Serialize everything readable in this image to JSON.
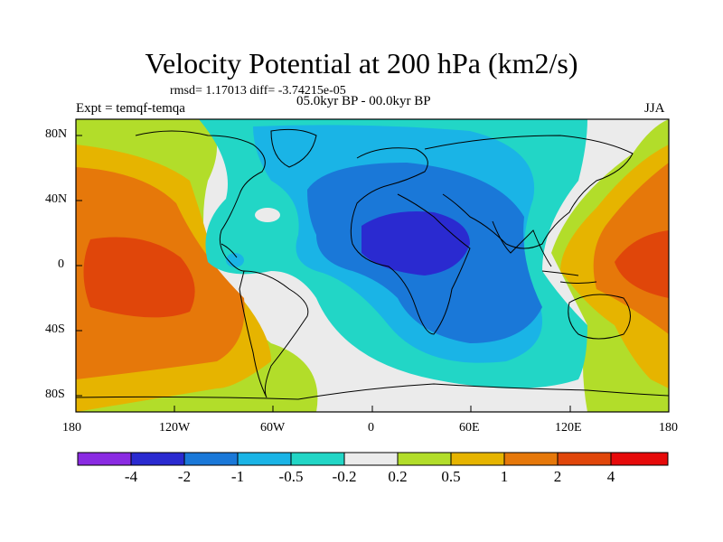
{
  "header": {
    "title": "Velocity Potential at 200 hPa (km2/s)",
    "stats": "rmsd= 1.17013 diff= -3.74215e-05",
    "period": "05.0kyr BP - 00.0kyr BP",
    "experiment": "Expt = temqf-temqa",
    "season": "JJA"
  },
  "chart_data": {
    "type": "heatmap",
    "title": "Velocity Potential at 200 hPa (km2/s)",
    "subtitle": "05.0kyr BP - 00.0kyr BP",
    "xlabel": "",
    "ylabel": "",
    "x_ticks": [
      "180",
      "120W",
      "60W",
      "0",
      "60E",
      "120E",
      "180"
    ],
    "y_ticks": [
      "80N",
      "40N",
      "0",
      "40S",
      "80S"
    ],
    "x_range": [
      -180,
      180
    ],
    "y_range": [
      -90,
      90
    ],
    "colorbar": {
      "labels": [
        "-4",
        "-2",
        "-1",
        "-0.5",
        "-0.2",
        "0.2",
        "0.5",
        "1",
        "2",
        "4"
      ],
      "colors": [
        "#8a2be2",
        "#2a2ad0",
        "#1a78d8",
        "#1ab4e6",
        "#22d6c6",
        "#ebebeb",
        "#b2dd2a",
        "#e6b400",
        "#e6780a",
        "#e0460a",
        "#e60a0a"
      ]
    },
    "features": [
      {
        "name": "strong negative center",
        "lon": 30,
        "lat": 10,
        "level": "-4 to -2"
      },
      {
        "name": "positive center East Pacific",
        "lon": -160,
        "lat": 5,
        "level": "2 to 4"
      },
      {
        "name": "positive center West Pacific",
        "lon": 150,
        "lat": 0,
        "level": "2 to 4"
      }
    ]
  }
}
